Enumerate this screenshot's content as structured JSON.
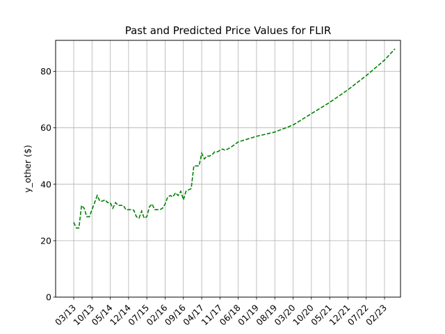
{
  "chart_data": {
    "type": "line",
    "title": "Past and Predicted Price Values for FLIR",
    "xlabel": "",
    "ylabel": "y_other ($)",
    "x_tick_labels": [
      "03/13",
      "10/13",
      "05/14",
      "12/14",
      "07/15",
      "02/16",
      "09/16",
      "04/17",
      "11/17",
      "06/18",
      "01/19",
      "08/19",
      "03/20",
      "10/20",
      "05/21",
      "12/21",
      "07/22",
      "02/23"
    ],
    "ylim": [
      0,
      91
    ],
    "y_ticks": [
      0,
      20,
      40,
      60,
      80
    ],
    "grid": true,
    "series": [
      {
        "color": "#008000",
        "line_style": "dashed",
        "points": [
          [
            "03/13",
            26.5
          ],
          [
            "04/13",
            24.5
          ],
          [
            "05/13",
            24.5
          ],
          [
            "06/13",
            32.5
          ],
          [
            "07/13",
            31.5
          ],
          [
            "08/13",
            28.5
          ],
          [
            "09/13",
            28.5
          ],
          [
            "10/13",
            31
          ],
          [
            "11/13",
            33.5
          ],
          [
            "12/13",
            36
          ],
          [
            "01/14",
            34.0
          ],
          [
            "02/14",
            34.0
          ],
          [
            "03/14",
            34.5
          ],
          [
            "04/14",
            33.5
          ],
          [
            "05/14",
            33.5
          ],
          [
            "06/14",
            31.5
          ],
          [
            "07/14",
            33.5
          ],
          [
            "08/14",
            32.5
          ],
          [
            "09/14",
            32.5
          ],
          [
            "10/14",
            32.5
          ],
          [
            "11/14",
            31.0
          ],
          [
            "12/14",
            31
          ],
          [
            "01/15",
            31
          ],
          [
            "02/15",
            30.8
          ],
          [
            "03/15",
            28.5
          ],
          [
            "04/15",
            28
          ],
          [
            "05/15",
            30.5
          ],
          [
            "06/15",
            28
          ],
          [
            "07/15",
            28.5
          ],
          [
            "08/15",
            32
          ],
          [
            "09/15",
            33
          ],
          [
            "10/15",
            31
          ],
          [
            "11/15",
            31
          ],
          [
            "12/15",
            31
          ],
          [
            "01/16",
            31.5
          ],
          [
            "02/16",
            33
          ],
          [
            "03/16",
            35.5
          ],
          [
            "04/16",
            36
          ],
          [
            "05/16",
            35.5
          ],
          [
            "06/16",
            37
          ],
          [
            "07/16",
            36
          ],
          [
            "08/16",
            37.5
          ],
          [
            "09/16",
            34.5
          ],
          [
            "10/16",
            37.5
          ],
          [
            "11/16",
            38
          ],
          [
            "12/16",
            38.5
          ],
          [
            "01/17",
            46.5
          ],
          [
            "02/17",
            46.5
          ],
          [
            "03/17",
            46.5
          ],
          [
            "04/17",
            51
          ],
          [
            "05/17",
            49
          ],
          [
            "06/17",
            50
          ],
          [
            "07/17",
            50
          ],
          [
            "08/17",
            50.5
          ],
          [
            "09/17",
            51.5
          ],
          [
            "10/17",
            51.5
          ],
          [
            "11/17",
            52
          ],
          [
            "12/17",
            52.5
          ],
          [
            "01/18",
            52
          ],
          [
            "02/18",
            52.5
          ],
          [
            "03/18",
            53
          ],
          [
            "06/18",
            55
          ],
          [
            "01/19",
            57
          ],
          [
            "08/19",
            58.5
          ],
          [
            "03/20",
            61
          ],
          [
            "10/20",
            65
          ],
          [
            "05/21",
            69
          ],
          [
            "12/21",
            73.5
          ],
          [
            "07/22",
            78.5
          ],
          [
            "02/23",
            84
          ],
          [
            "06/23",
            88
          ]
        ]
      }
    ]
  }
}
